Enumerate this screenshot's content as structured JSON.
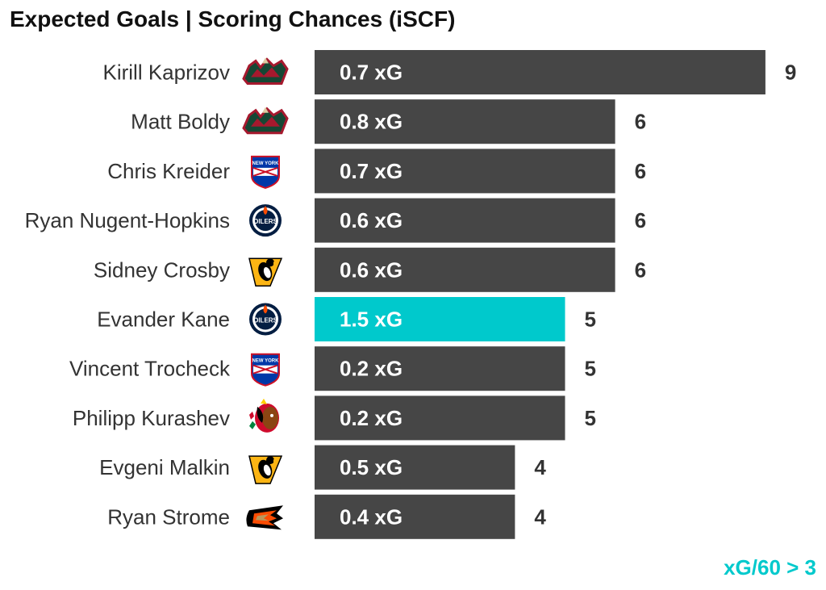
{
  "title": "Expected Goals | Scoring Chances (iSCF)",
  "footnote": "xG/60 > 3",
  "colors": {
    "bar": "#464646",
    "highlight": "#00c9cc",
    "text": "#333333",
    "footnote": "#00c9cc"
  },
  "chart_data": {
    "type": "bar",
    "orientation": "horizontal",
    "title": "Expected Goals | Scoring Chances (iSCF)",
    "xlim": [
      0,
      9
    ],
    "grid": false,
    "legend": "none",
    "highlight_rule": "xG/60 > 3",
    "categories": [
      "Kirill Kaprizov",
      "Matt Boldy",
      "Chris Kreider",
      "Ryan Nugent-Hopkins",
      "Sidney Crosby",
      "Evander Kane",
      "Vincent Trocheck",
      "Philipp Kurashev",
      "Evgeni Malkin",
      "Ryan Strome"
    ],
    "teams": [
      "minnesota-wild",
      "minnesota-wild",
      "new-york-rangers",
      "edmonton-oilers",
      "pittsburgh-penguins",
      "edmonton-oilers",
      "new-york-rangers",
      "chicago-blackhawks",
      "pittsburgh-penguins",
      "anaheim-ducks"
    ],
    "team_logo_text": [
      "",
      "",
      "NEW YORK RANGERS",
      "OILERS",
      "",
      "OILERS",
      "NEW YORK RANGERS",
      "",
      "",
      ""
    ],
    "values": [
      9,
      6,
      6,
      6,
      6,
      5,
      5,
      5,
      4,
      4
    ],
    "xg_labels": [
      "0.7 xG",
      "0.8 xG",
      "0.7 xG",
      "0.6 xG",
      "0.6 xG",
      "1.5 xG",
      "0.2 xG",
      "0.2 xG",
      "0.5 xG",
      "0.4 xG"
    ],
    "xg": [
      0.7,
      0.8,
      0.7,
      0.6,
      0.6,
      1.5,
      0.2,
      0.2,
      0.5,
      0.4
    ],
    "highlighted": [
      false,
      false,
      false,
      false,
      false,
      true,
      false,
      false,
      false,
      false
    ]
  }
}
